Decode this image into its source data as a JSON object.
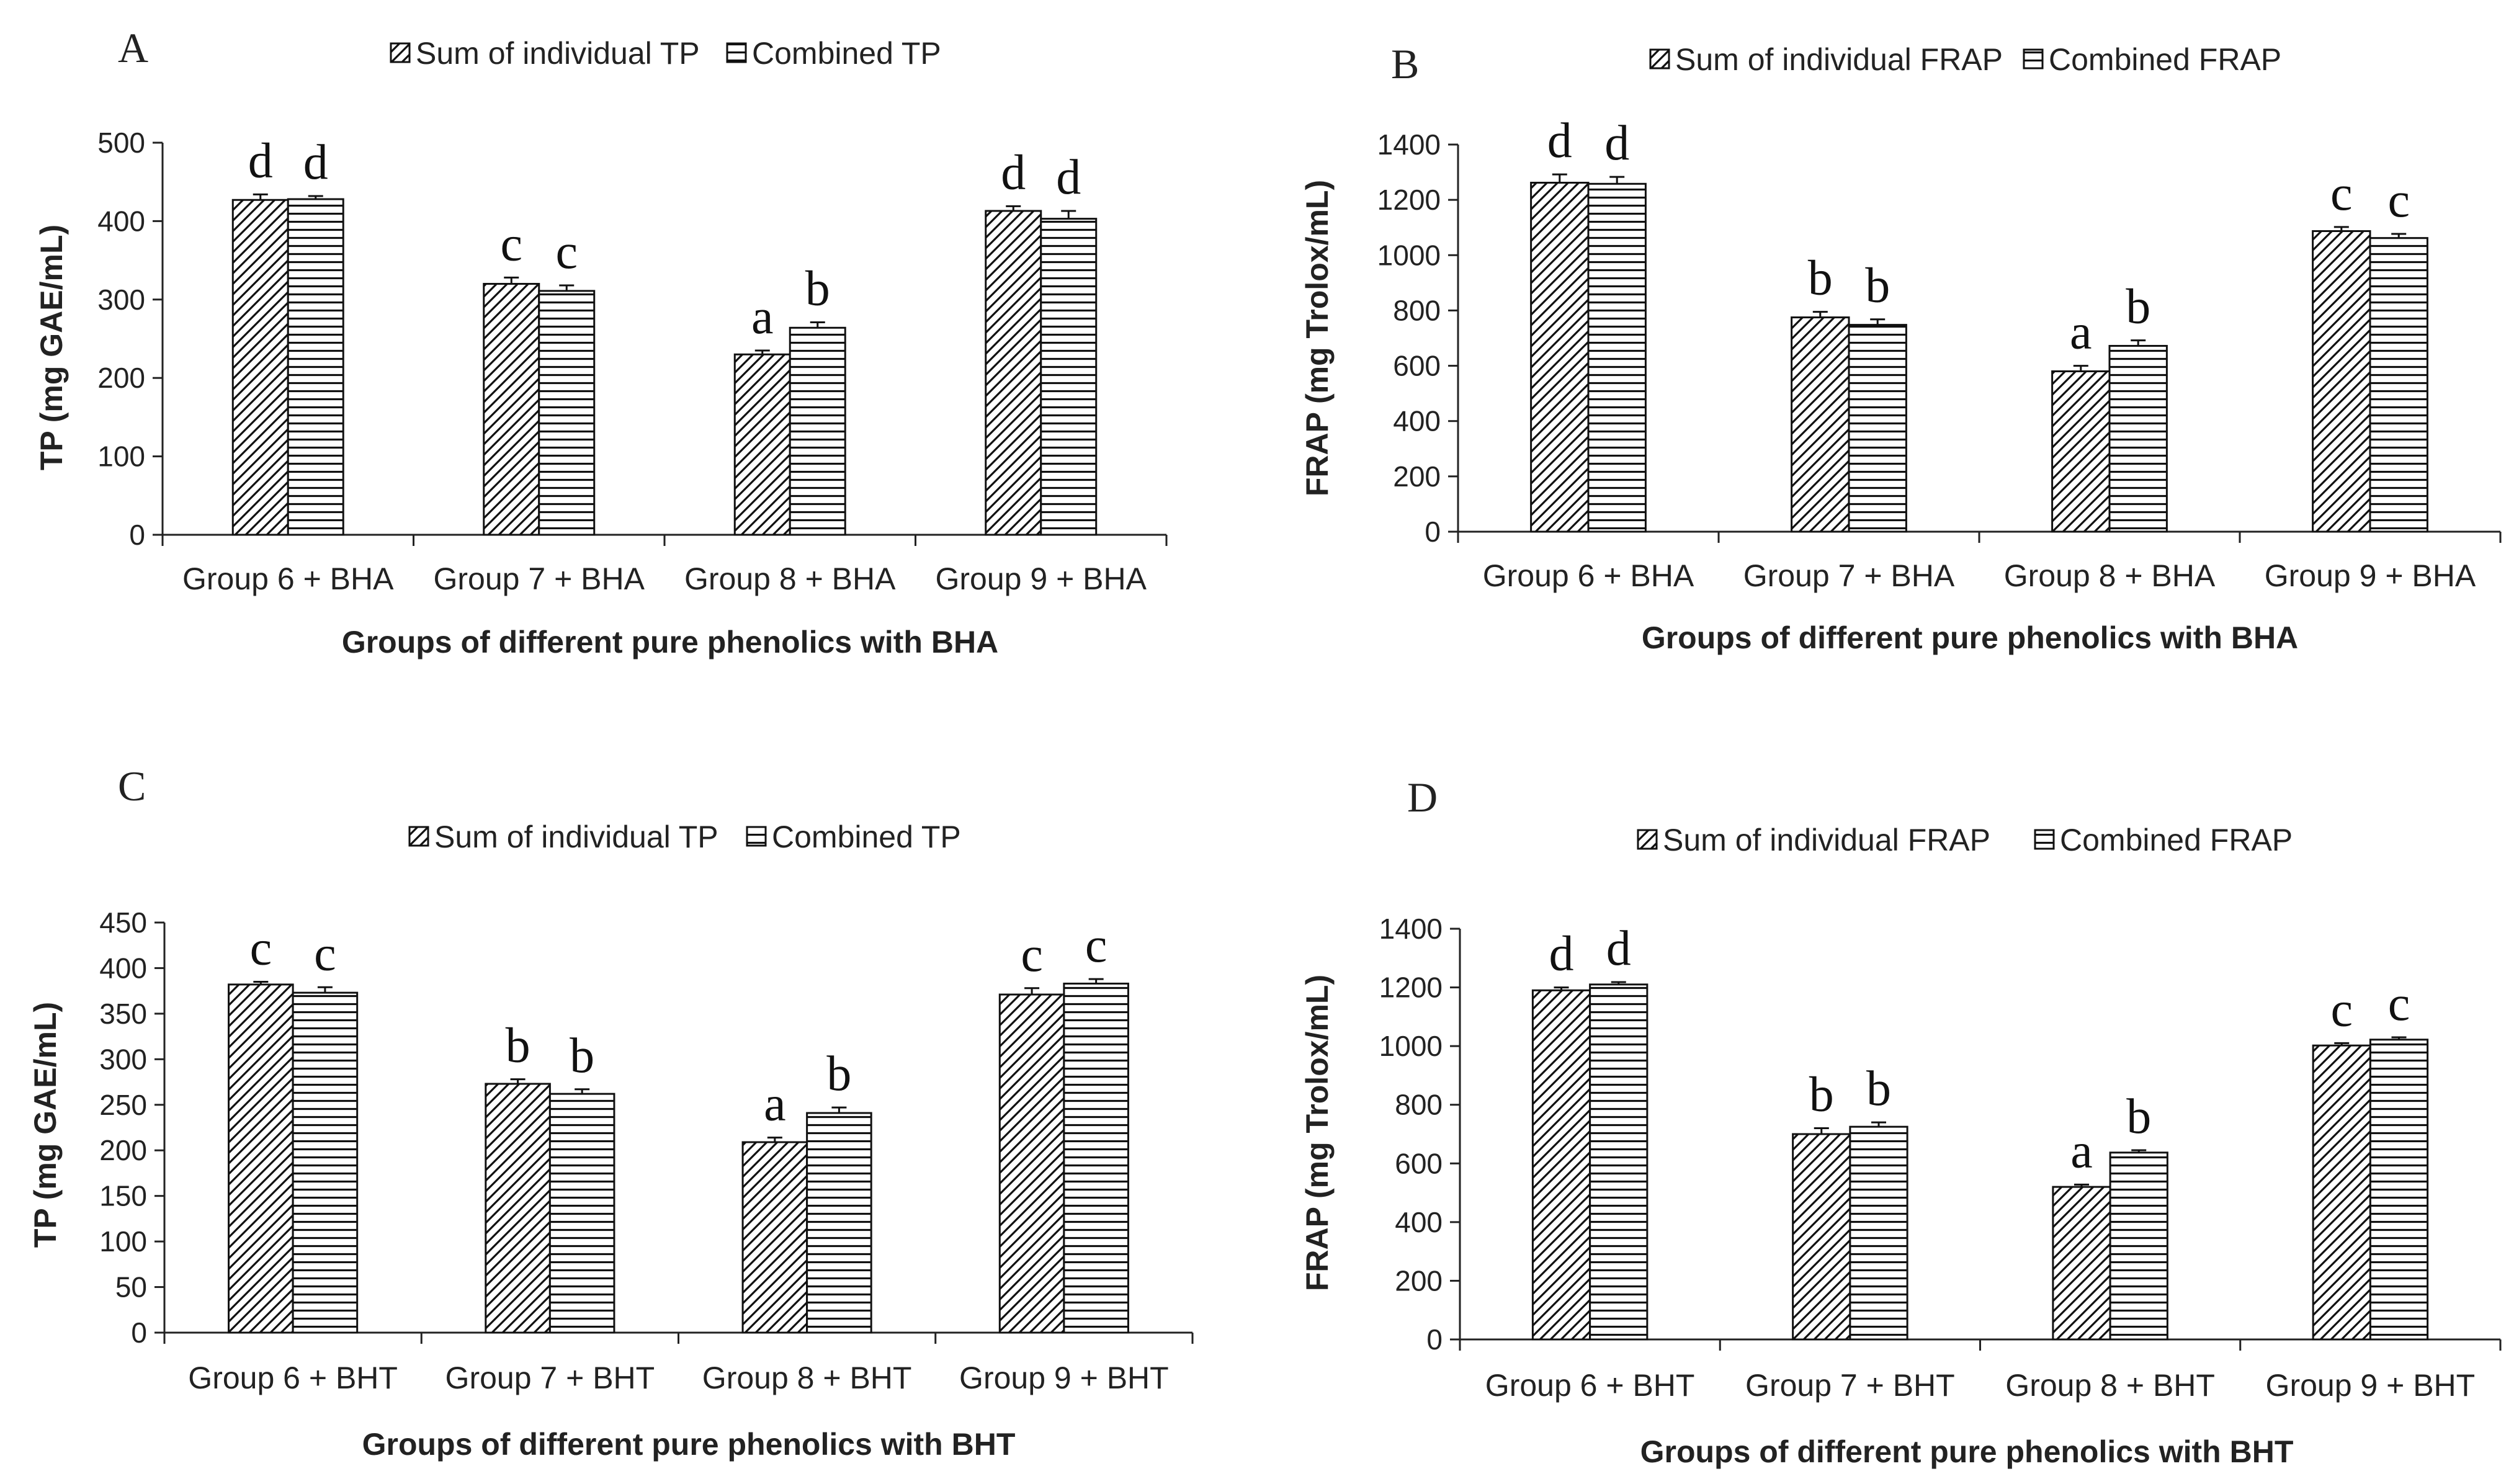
{
  "chart_data": [
    {
      "type": "bar",
      "panel": "A",
      "legend": [
        "Sum of individual TP",
        "Combined TP"
      ],
      "ylabel": "TP (mg GAE/mL)",
      "xlabel": "Groups of different pure phenolics with BHA",
      "ylim": [
        0,
        500
      ],
      "yticks": [
        0,
        100,
        200,
        300,
        400,
        500
      ],
      "categories": [
        "Group 6 + BHA",
        "Group 7 + BHA",
        "Group 8 + BHA",
        "Group 9 + BHA"
      ],
      "series": [
        {
          "name": "Sum of individual TP",
          "pattern": "diagonal",
          "values": [
            427,
            320,
            230,
            413
          ],
          "errors": [
            7,
            8,
            5,
            6
          ],
          "letters": [
            "d",
            "c",
            "a",
            "d"
          ]
        },
        {
          "name": "Combined TP",
          "pattern": "horizontal",
          "values": [
            428,
            311,
            264,
            403
          ],
          "errors": [
            4,
            7,
            7,
            10
          ],
          "letters": [
            "d",
            "c",
            "b",
            "d"
          ]
        }
      ]
    },
    {
      "type": "bar",
      "panel": "B",
      "legend": [
        "Sum of individual FRAP",
        "Combined FRAP"
      ],
      "ylabel": "FRAP (mg Trolox/mL)",
      "xlabel": "Groups of different pure phenolics with BHA",
      "ylim": [
        0,
        1400
      ],
      "yticks": [
        0,
        200,
        400,
        600,
        800,
        1000,
        1200,
        1400
      ],
      "categories": [
        "Group 6 + BHA",
        "Group 7 + BHA",
        "Group 8 + BHA",
        "Group 9 + BHA"
      ],
      "series": [
        {
          "name": "Sum of individual FRAP",
          "pattern": "diagonal",
          "values": [
            1262,
            775,
            580,
            1087
          ],
          "errors": [
            30,
            20,
            20,
            15
          ],
          "letters": [
            "d",
            "b",
            "a",
            "c"
          ]
        },
        {
          "name": "Combined FRAP",
          "pattern": "horizontal",
          "values": [
            1258,
            748,
            672,
            1062
          ],
          "errors": [
            25,
            20,
            20,
            15
          ],
          "letters": [
            "d",
            "b",
            "b",
            "c"
          ]
        }
      ]
    },
    {
      "type": "bar",
      "panel": "C",
      "legend": [
        "Sum of individual TP",
        "Combined TP"
      ],
      "ylabel": "TP (mg GAE/mL)",
      "xlabel": "Groups of different pure phenolics with BHT",
      "ylim": [
        0,
        450
      ],
      "yticks": [
        0,
        50,
        100,
        150,
        200,
        250,
        300,
        350,
        400,
        450
      ],
      "categories": [
        "Group 6 + BHT",
        "Group 7 + BHT",
        "Group 8 + BHT",
        "Group 9 + BHT"
      ],
      "series": [
        {
          "name": "Sum of individual TP",
          "pattern": "diagonal",
          "values": [
            382,
            273,
            209,
            371
          ],
          "errors": [
            3,
            5,
            5,
            7
          ],
          "letters": [
            "c",
            "b",
            "a",
            "c"
          ]
        },
        {
          "name": "Combined TP",
          "pattern": "horizontal",
          "values": [
            373,
            262,
            241,
            383
          ],
          "errors": [
            6,
            5,
            6,
            5
          ],
          "letters": [
            "c",
            "b",
            "b",
            "c"
          ]
        }
      ]
    },
    {
      "type": "bar",
      "panel": "D",
      "legend": [
        "Sum of individual FRAP",
        "Combined FRAP"
      ],
      "ylabel": "FRAP (mg Trolox/mL)",
      "xlabel": "Groups of different pure phenolics with BHT",
      "ylim": [
        0,
        1400
      ],
      "yticks": [
        0,
        200,
        400,
        600,
        800,
        1000,
        1200,
        1400
      ],
      "categories": [
        "Group 6 + BHT",
        "Group 7 + BHT",
        "Group 8 + BHT",
        "Group 9 + BHT"
      ],
      "series": [
        {
          "name": "Sum of individual FRAP",
          "pattern": "diagonal",
          "values": [
            1190,
            700,
            520,
            1002
          ],
          "errors": [
            10,
            20,
            8,
            8
          ],
          "letters": [
            "d",
            "b",
            "a",
            "c"
          ]
        },
        {
          "name": "Combined FRAP",
          "pattern": "horizontal",
          "values": [
            1210,
            725,
            637,
            1022
          ],
          "errors": [
            8,
            15,
            8,
            8
          ],
          "letters": [
            "d",
            "b",
            "b",
            "c"
          ]
        }
      ]
    }
  ]
}
